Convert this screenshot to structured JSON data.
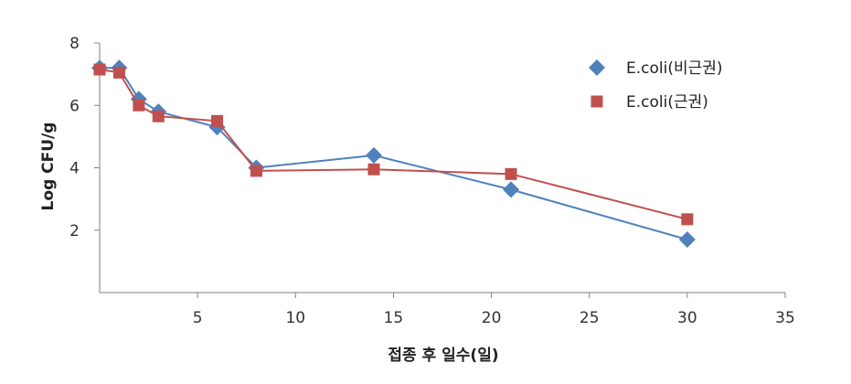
{
  "chart_data": {
    "type": "line",
    "title": "",
    "xlabel": "접종 후 일수(일)",
    "ylabel": "Log CFU/g",
    "xlim": [
      0,
      35
    ],
    "ylim": [
      0,
      8
    ],
    "x_ticks": [
      5,
      10,
      15,
      20,
      25,
      30,
      35
    ],
    "y_ticks": [
      2,
      4,
      6,
      8
    ],
    "grid": false,
    "legend_position": "top-right",
    "series": [
      {
        "name": "E.coli(비근권)",
        "color": "#4F81BD",
        "marker": "diamond",
        "x": [
          0,
          1,
          2,
          3,
          6,
          8,
          14,
          21,
          30
        ],
        "y": [
          7.2,
          7.2,
          6.2,
          5.8,
          5.3,
          4.0,
          4.4,
          3.3,
          1.7
        ]
      },
      {
        "name": "E.coli(근권)",
        "color": "#C0504D",
        "marker": "square",
        "x": [
          0,
          1,
          2,
          3,
          6,
          8,
          14,
          21,
          30
        ],
        "y": [
          7.15,
          7.05,
          6.0,
          5.65,
          5.5,
          3.9,
          3.95,
          3.8,
          2.35
        ]
      }
    ]
  }
}
